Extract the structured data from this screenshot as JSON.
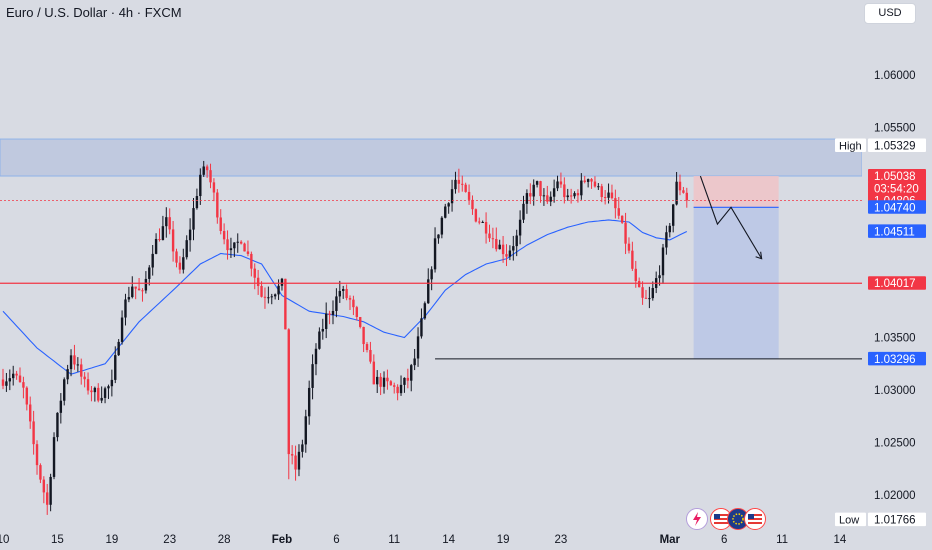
{
  "header": {
    "title": "Euro / U.S. Dollar · 4h · FXCM",
    "currency_button": "USD"
  },
  "icons": [
    "lightning-icon",
    "us-flag-icon",
    "eu-flag-icon",
    "us-flag-icon"
  ],
  "colors": {
    "background": "#d8dbe3",
    "bull": "#131722",
    "bear": "#f23645",
    "ma_line": "#2962ff",
    "resistance_zone": "#b8c3de",
    "support_line": "#f23645",
    "short_stop_zone": "#f0c3c7",
    "short_target_zone": "#bac6e6"
  },
  "chart_data": {
    "type": "candlestick",
    "symbol": "EUR/USD",
    "timeframe": "4h",
    "ylim": [
      1.0145,
      1.069
    ],
    "price_ticks": [
      1.06,
      1.055,
      1.05,
      1.045,
      1.04,
      1.035,
      1.03,
      1.025,
      1.02
    ],
    "price_tick_labels": [
      "1.06000",
      "1.05500",
      "1.05000",
      "1.04500",
      "1.04000",
      "1.03500",
      "1.03000",
      "1.02500",
      "1.02000"
    ],
    "date_ticks": [
      {
        "label": "10",
        "index": 0
      },
      {
        "label": "15",
        "index": 16
      },
      {
        "label": "19",
        "index": 32
      },
      {
        "label": "23",
        "index": 49
      },
      {
        "label": "28",
        "index": 65
      },
      {
        "label": "Feb",
        "index": 82
      },
      {
        "label": "6",
        "index": 98
      },
      {
        "label": "11",
        "index": 115
      },
      {
        "label": "14",
        "index": 131
      },
      {
        "label": "19",
        "index": 147
      },
      {
        "label": "23",
        "index": 164
      },
      {
        "label": "Mar",
        "index": 196
      },
      {
        "label": "6",
        "index": 212
      },
      {
        "label": "11",
        "index": 229
      },
      {
        "label": "14",
        "index": 246
      }
    ],
    "last_index": 201,
    "series": [
      {
        "kind": "price",
        "anchors": [
          [
            0,
            1.031
          ],
          [
            3,
            1.0315
          ],
          [
            6,
            1.03
          ],
          [
            10,
            1.023
          ],
          [
            13,
            1.019
          ],
          [
            15,
            1.0255
          ],
          [
            18,
            1.031
          ],
          [
            20,
            1.0335
          ],
          [
            24,
            1.0305
          ],
          [
            28,
            1.0295
          ],
          [
            32,
            1.0305
          ],
          [
            35,
            1.0375
          ],
          [
            38,
            1.04
          ],
          [
            41,
            1.039
          ],
          [
            44,
            1.0435
          ],
          [
            48,
            1.046
          ],
          [
            52,
            1.041
          ],
          [
            55,
            1.0455
          ],
          [
            58,
            1.0505
          ],
          [
            60,
            1.051
          ],
          [
            62,
            1.0485
          ],
          [
            64,
            1.0455
          ],
          [
            67,
            1.043
          ],
          [
            70,
            1.0445
          ],
          [
            73,
            1.042
          ],
          [
            76,
            1.039
          ],
          [
            80,
            1.0395
          ],
          [
            82,
            1.04
          ],
          [
            83,
            1.036
          ],
          [
            84,
            1.024
          ],
          [
            86,
            1.0225
          ],
          [
            88,
            1.025
          ],
          [
            90,
            1.03
          ],
          [
            92,
            1.034
          ],
          [
            95,
            1.037
          ],
          [
            97,
            1.038
          ],
          [
            99,
            1.0395
          ],
          [
            102,
            1.0385
          ],
          [
            106,
            1.0345
          ],
          [
            109,
            1.031
          ],
          [
            113,
            1.0305
          ],
          [
            116,
            1.03
          ],
          [
            119,
            1.031
          ],
          [
            121,
            1.033
          ],
          [
            124,
            1.038
          ],
          [
            127,
            1.044
          ],
          [
            130,
            1.0475
          ],
          [
            133,
            1.05
          ],
          [
            136,
            1.0485
          ],
          [
            139,
            1.0465
          ],
          [
            142,
            1.0455
          ],
          [
            145,
            1.044
          ],
          [
            148,
            1.043
          ],
          [
            151,
            1.0445
          ],
          [
            154,
            1.0485
          ],
          [
            157,
            1.0495
          ],
          [
            160,
            1.0475
          ],
          [
            163,
            1.05
          ],
          [
            166,
            1.048
          ],
          [
            169,
            1.049
          ],
          [
            172,
            1.0505
          ],
          [
            175,
            1.049
          ],
          [
            178,
            1.0485
          ],
          [
            181,
            1.0465
          ],
          [
            184,
            1.043
          ],
          [
            186,
            1.04
          ],
          [
            188,
            1.0385
          ],
          [
            190,
            1.0385
          ],
          [
            193,
            1.0415
          ],
          [
            196,
            1.046
          ],
          [
            198,
            1.0495
          ],
          [
            200,
            1.049
          ],
          [
            201,
            1.0481
          ]
        ]
      },
      {
        "kind": "moving_average",
        "anchors": [
          [
            0,
            1.0375
          ],
          [
            10,
            1.034
          ],
          [
            20,
            1.0315
          ],
          [
            30,
            1.0325
          ],
          [
            40,
            1.0365
          ],
          [
            50,
            1.0395
          ],
          [
            58,
            1.042
          ],
          [
            64,
            1.043
          ],
          [
            70,
            1.0428
          ],
          [
            76,
            1.042
          ],
          [
            82,
            1.039
          ],
          [
            90,
            1.0375
          ],
          [
            100,
            1.037
          ],
          [
            106,
            1.0365
          ],
          [
            112,
            1.0355
          ],
          [
            118,
            1.035
          ],
          [
            124,
            1.037
          ],
          [
            130,
            1.0395
          ],
          [
            136,
            1.041
          ],
          [
            142,
            1.042
          ],
          [
            148,
            1.0425
          ],
          [
            154,
            1.0438
          ],
          [
            160,
            1.0448
          ],
          [
            166,
            1.0455
          ],
          [
            172,
            1.046
          ],
          [
            178,
            1.0462
          ],
          [
            184,
            1.046
          ],
          [
            188,
            1.045
          ],
          [
            192,
            1.0445
          ],
          [
            196,
            1.0443
          ],
          [
            201,
            1.0451
          ]
        ]
      }
    ],
    "annotations": {
      "resistance_zone": [
        1.05038,
        1.0539
      ],
      "support_line": 1.04017,
      "target_line": 1.03296,
      "short_position": {
        "entry": 1.0474,
        "stop": 1.05038,
        "target": 1.03296,
        "from_index": 203,
        "to_index": 228
      },
      "projection_path": [
        [
          205,
          1.05038
        ],
        [
          210,
          1.0458
        ],
        [
          214,
          1.0474
        ],
        [
          223,
          1.0425
        ]
      ]
    },
    "price_labels": [
      {
        "text": "1.05329",
        "price": 1.05329,
        "tag": "High",
        "style": "plain"
      },
      {
        "text": "1.05038",
        "price": 1.05038,
        "style": "red"
      },
      {
        "text": "03:54:20",
        "price": 1.04918,
        "style": "red"
      },
      {
        "text": "1.04806",
        "price": 1.04806,
        "style": "red"
      },
      {
        "text": "1.04740",
        "price": 1.0474,
        "style": "blue"
      },
      {
        "text": "1.04511",
        "price": 1.04511,
        "style": "blue"
      },
      {
        "text": "1.04017",
        "price": 1.04017,
        "style": "red"
      },
      {
        "text": "1.03296",
        "price": 1.03296,
        "style": "blue"
      },
      {
        "text": "1.01766",
        "price": 1.01766,
        "tag": "Low",
        "style": "plain"
      }
    ]
  }
}
